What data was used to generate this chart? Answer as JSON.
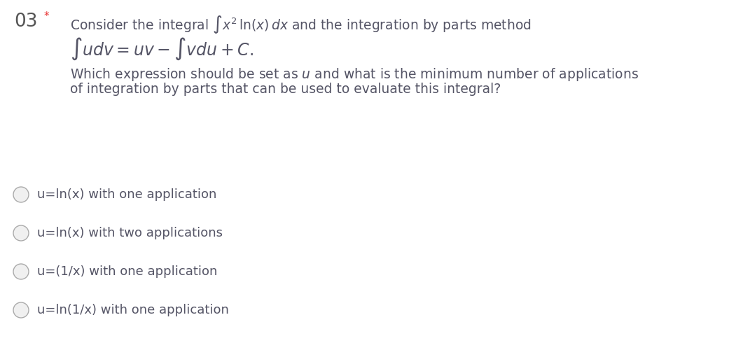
{
  "background_color": "#ffffff",
  "question_number": "03",
  "question_number_color": "#555555",
  "asterisk": "*",
  "asterisk_color": "#e83030",
  "text_color": "#555566",
  "options": [
    "u=ln(x) with one application",
    "u=ln(x) with two applications",
    "u=(1/x) with one application",
    "u=ln(1/x) with one application"
  ],
  "option_color": "#555566",
  "circle_facecolor": "#f0f0f0",
  "circle_edgecolor": "#aaaaaa",
  "option_font_size": 13,
  "question_font_size": 13.5,
  "number_font_size": 19,
  "line2_font_size": 17,
  "fig_width": 10.51,
  "fig_height": 4.9,
  "dpi": 100
}
